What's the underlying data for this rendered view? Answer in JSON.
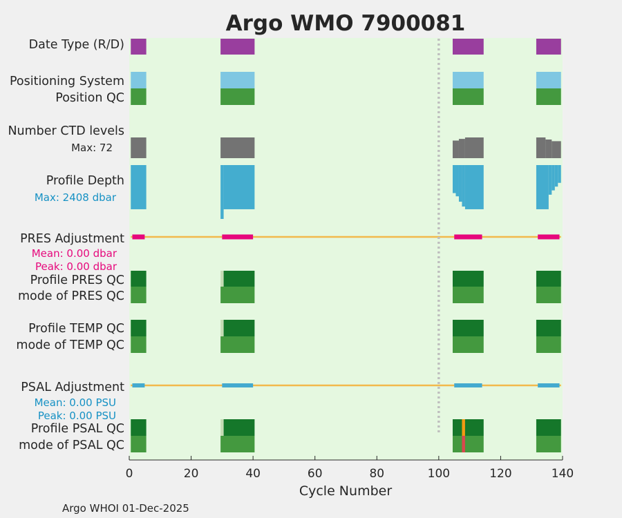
{
  "chart_data": {
    "type": "heatmap",
    "title": "Argo WMO 7900081",
    "xlabel": "Cycle Number",
    "xlim": [
      0,
      140
    ],
    "xticks": [
      0,
      20,
      40,
      60,
      80,
      100,
      120,
      140
    ],
    "xtick_labels": [
      "0",
      "20",
      "40",
      "60",
      "80",
      "100",
      "120",
      "140"
    ],
    "footer": "Argo WHOI 01-Dec-2025",
    "reference_cycle": 100,
    "row_labels": {
      "date_type": "Date Type (R/D)",
      "positioning": "Positioning System",
      "position_qc": "Position QC",
      "ctd_levels": "Number CTD levels",
      "ctd_max": "Max: 72",
      "profile_depth": "Profile Depth",
      "depth_max": "Max: 2408 dbar",
      "pres_adj": "PRES Adjustment",
      "pres_mean": "Mean: 0.00 dbar",
      "pres_peak": "Peak: 0.00 dbar",
      "pres_qc": "Profile PRES QC",
      "pres_mode": "mode of PRES QC",
      "temp_qc": "Profile TEMP QC",
      "temp_mode": "mode of TEMP QC",
      "psal_adj": "PSAL Adjustment",
      "psal_mean": "Mean: 0.00 PSU",
      "psal_peak": "Peak: 0.00 PSU",
      "psal_qc": "Profile PSAL QC",
      "psal_mode": "mode of PSAL QC"
    },
    "cycle_blocks": [
      {
        "start": 0.5,
        "end": 5.5
      },
      {
        "start": 29.5,
        "end": 40.5
      },
      {
        "start": 104.5,
        "end": 114.5
      },
      {
        "start": 131.5,
        "end": 139.5
      }
    ],
    "ctd_levels_pct": [
      {
        "start": 0.5,
        "end": 5.5,
        "pct": 1.0
      },
      {
        "start": 29.5,
        "end": 40.5,
        "pct": 1.0
      },
      {
        "start": 104.5,
        "end": 106.5,
        "pct": 0.85
      },
      {
        "start": 106.5,
        "end": 108.5,
        "pct": 0.93
      },
      {
        "start": 108.5,
        "end": 114.5,
        "pct": 1.0
      },
      {
        "start": 131.5,
        "end": 134.5,
        "pct": 1.0
      },
      {
        "start": 134.5,
        "end": 136.5,
        "pct": 0.9
      },
      {
        "start": 136.5,
        "end": 139.5,
        "pct": 0.82
      }
    ],
    "depth_pct": [
      {
        "start": 0.5,
        "end": 5.5,
        "pct": 0.82
      },
      {
        "start": 29.5,
        "end": 30.5,
        "pct": 1.0
      },
      {
        "start": 30.5,
        "end": 40.5,
        "pct": 0.82
      },
      {
        "start": 104.5,
        "end": 105.5,
        "pct": 0.52
      },
      {
        "start": 105.5,
        "end": 106.5,
        "pct": 0.58
      },
      {
        "start": 106.5,
        "end": 107.5,
        "pct": 0.68
      },
      {
        "start": 107.5,
        "end": 108.5,
        "pct": 0.77
      },
      {
        "start": 108.5,
        "end": 114.5,
        "pct": 0.82
      },
      {
        "start": 131.5,
        "end": 135.5,
        "pct": 0.82
      },
      {
        "start": 135.5,
        "end": 136.5,
        "pct": 0.55
      },
      {
        "start": 136.5,
        "end": 137.5,
        "pct": 0.47
      },
      {
        "start": 137.5,
        "end": 138.5,
        "pct": 0.4
      },
      {
        "start": 138.5,
        "end": 139.5,
        "pct": 0.33
      }
    ],
    "adjustment_segments": [
      {
        "start": 1.0,
        "end": 5.0
      },
      {
        "start": 30.0,
        "end": 40.0
      },
      {
        "start": 105.0,
        "end": 114.0
      },
      {
        "start": 132.0,
        "end": 139.0
      }
    ],
    "qc_profile_blocks": [
      {
        "start": 29.5,
        "end": 30.5,
        "cls": "light"
      },
      {
        "start": 0.5,
        "end": 5.5,
        "cls": "good"
      },
      {
        "start": 30.5,
        "end": 40.5,
        "cls": "good"
      },
      {
        "start": 104.5,
        "end": 114.5,
        "cls": "good"
      },
      {
        "start": 131.5,
        "end": 139.5,
        "cls": "good"
      }
    ],
    "psal_flags": [
      {
        "start": 107.5,
        "end": 108.5,
        "profile_cls": "orange",
        "mode_cls": "red"
      }
    ],
    "colors": {
      "background": "#e5f8e0",
      "figure": "#f0f0f0",
      "title": "#0f8bbd",
      "date_type": "#993e9e",
      "positioning": "#7fc7e2",
      "qc_mode": "#44993f",
      "qc_good": "#15772a",
      "qc_light": "#c6dcb5",
      "ctd": "#737373",
      "depth": "#44adcf",
      "pres": "#e6087c",
      "psal": "#44aacf",
      "adjust_line": "#f2b94b",
      "ref_line": "#bfbfbf",
      "orange": "#f29a13",
      "red": "#d9484d",
      "mean_pres": "#e6087c",
      "mean_psal": "#1691c4"
    }
  }
}
